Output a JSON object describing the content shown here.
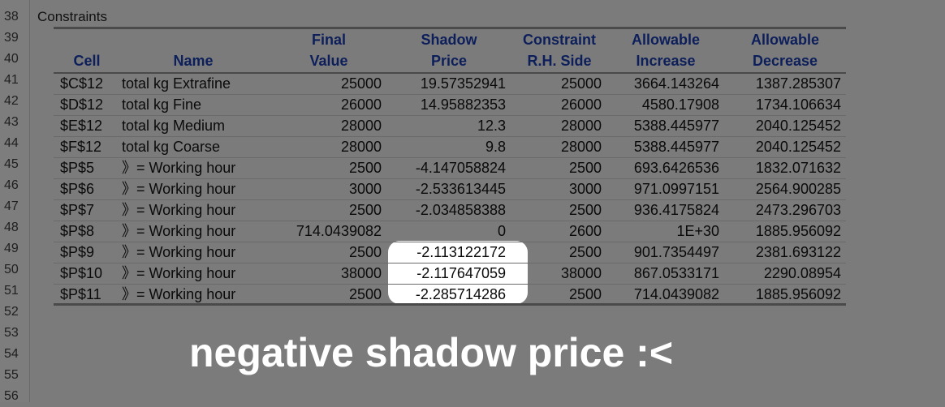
{
  "row_numbers": [
    "38",
    "39",
    "40",
    "41",
    "42",
    "43",
    "44",
    "45",
    "46",
    "47",
    "48",
    "49",
    "50",
    "51",
    "52",
    "53",
    "54",
    "55",
    "56"
  ],
  "title": "Constraints",
  "headers": {
    "cell": "Cell",
    "name": "Name",
    "final_value": [
      "Final",
      "Value"
    ],
    "shadow_price": [
      "Shadow",
      "Price"
    ],
    "constraint": [
      "Constraint",
      "R.H. Side"
    ],
    "allow_inc": [
      "Allowable",
      "Increase"
    ],
    "allow_dec": [
      "Allowable",
      "Decrease"
    ]
  },
  "rows": [
    {
      "cell": "$C$12",
      "name": "total kg Extrafine",
      "final": "25000",
      "shadow": "19.57352941",
      "rhs": "25000",
      "inc": "3664.143264",
      "dec": "1387.285307"
    },
    {
      "cell": "$D$12",
      "name": "total kg Fine",
      "final": "26000",
      "shadow": "14.95882353",
      "rhs": "26000",
      "inc": "4580.17908",
      "dec": "1734.106634"
    },
    {
      "cell": "$E$12",
      "name": "total kg Medium",
      "final": "28000",
      "shadow": "12.3",
      "rhs": "28000",
      "inc": "5388.445977",
      "dec": "2040.125452"
    },
    {
      "cell": "$F$12",
      "name": "total kg Coarse",
      "final": "28000",
      "shadow": "9.8",
      "rhs": "28000",
      "inc": "5388.445977",
      "dec": "2040.125452"
    },
    {
      "cell": "$P$5",
      "name": "》= Working hour",
      "final": "2500",
      "shadow": "-4.147058824",
      "rhs": "2500",
      "inc": "693.6426536",
      "dec": "1832.071632"
    },
    {
      "cell": "$P$6",
      "name": "》= Working hour",
      "final": "3000",
      "shadow": "-2.533613445",
      "rhs": "3000",
      "inc": "971.0997151",
      "dec": "2564.900285"
    },
    {
      "cell": "$P$7",
      "name": "》= Working hour",
      "final": "2500",
      "shadow": "-2.034858388",
      "rhs": "2500",
      "inc": "936.4175824",
      "dec": "2473.296703"
    },
    {
      "cell": "$P$8",
      "name": "》= Working hour",
      "final": "714.0439082",
      "shadow": "0",
      "rhs": "2600",
      "inc": "1E+30",
      "dec": "1885.956092"
    },
    {
      "cell": "$P$9",
      "name": "》= Working hour",
      "final": "2500",
      "shadow": "-2.113122172",
      "rhs": "2500",
      "inc": "901.7354497",
      "dec": "2381.693122"
    },
    {
      "cell": "$P$10",
      "name": "》= Working hour",
      "final": "38000",
      "shadow": "-2.117647059",
      "rhs": "38000",
      "inc": "867.0533171",
      "dec": "2290.08954"
    },
    {
      "cell": "$P$11",
      "name": "》= Working hour",
      "final": "2500",
      "shadow": "-2.285714286",
      "rhs": "2500",
      "inc": "714.0439082",
      "dec": "1885.956092"
    }
  ],
  "caption": "negative shadow price :<"
}
